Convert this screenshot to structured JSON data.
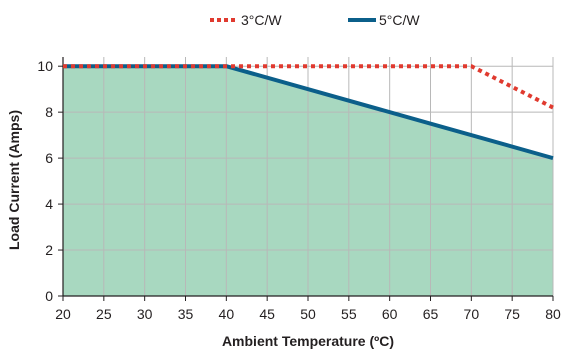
{
  "chart_data": {
    "type": "line",
    "xlabel": "Ambient Temperature (ºC)",
    "ylabel": "Load Current (Amps)",
    "xlim": [
      20,
      80
    ],
    "ylim": [
      0,
      10.4
    ],
    "xticks": [
      20,
      25,
      30,
      35,
      40,
      45,
      50,
      55,
      60,
      65,
      70,
      75,
      80
    ],
    "yticks": [
      0,
      2,
      4,
      6,
      8,
      10
    ],
    "grid": true,
    "legend_position": "top-center",
    "fill_under": "5°C/W",
    "fill_color": "#a8d8c0",
    "series": [
      {
        "name": "3°C/W",
        "style": "dotted",
        "color": "#e03a2f",
        "x": [
          20,
          40,
          70,
          80
        ],
        "y": [
          10,
          10,
          10,
          8.2
        ]
      },
      {
        "name": "5°C/W",
        "style": "solid",
        "color": "#0b5f8a",
        "x": [
          20,
          40,
          80
        ],
        "y": [
          10,
          10,
          6
        ]
      }
    ]
  }
}
